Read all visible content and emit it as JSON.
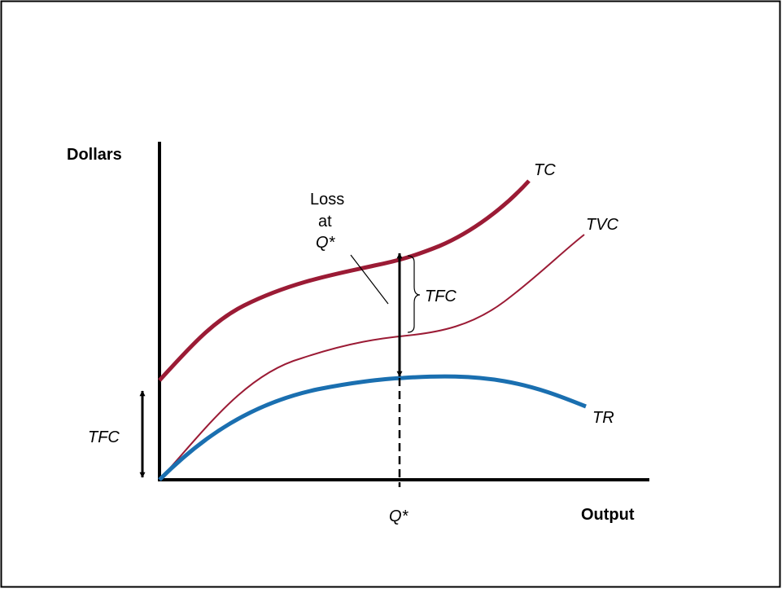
{
  "diagram": {
    "axes": {
      "y_label": "Dollars",
      "x_label": "Output"
    },
    "curves": {
      "tc": {
        "label": "TC",
        "color": "#9b1b35"
      },
      "tvc": {
        "label": "TVC",
        "color": "#9b1b35"
      },
      "tr": {
        "label": "TR",
        "color": "#1a6fb0"
      }
    },
    "annotations": {
      "tfc_left": "TFC",
      "tfc_right": "TFC",
      "loss_line1": "Loss",
      "loss_line2": "at",
      "loss_line3": "Q*",
      "q_star": "Q*"
    },
    "colors": {
      "border": "#000000",
      "axis": "#000000",
      "arrow": "#000000"
    }
  }
}
